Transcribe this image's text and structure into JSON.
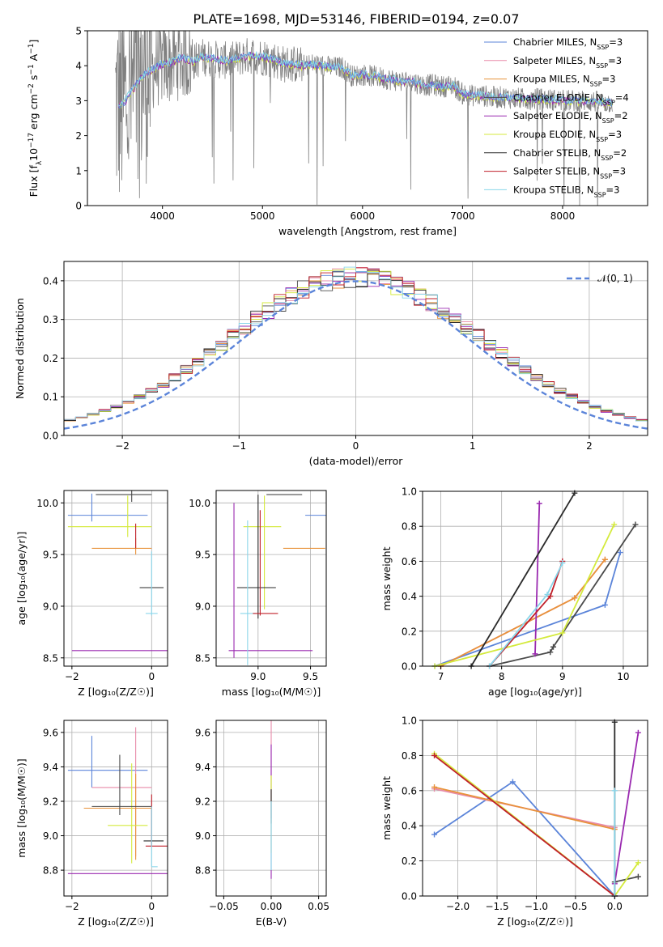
{
  "title": "PLATE=1698, MJD=53146, FIBERID=0194, z=0.07",
  "colors": {
    "Chabrier MILES": "#5b84d9",
    "Salpeter MILES": "#e88aa8",
    "Kroupa MILES": "#e8923a",
    "Chabrier ELODIE": "#4a4a4a",
    "Salpeter ELODIE": "#9a2ab0",
    "Kroupa ELODIE": "#d4ea3c",
    "Chabrier STELIB": "#2a2a2a",
    "Salpeter STELIB": "#c0202a",
    "Kroupa STELIB": "#8ad6ea",
    "data": "#808080",
    "normal": "#5b84d9"
  },
  "chart_data": [
    {
      "id": "spectrum",
      "type": "line",
      "xlabel": "wavelength [Angstrom, rest frame]",
      "ylabel_html": "Flux [f<tspan baseline-shift='sub' font-size='9'>λ</tspan>10<tspan baseline-shift='super' font-size='9'>−17</tspan> erg cm<tspan baseline-shift='super' font-size='9'>−2</tspan> s<tspan baseline-shift='super' font-size='9'>−1</tspan> A<tspan baseline-shift='super' font-size='9'>−1</tspan>]",
      "xlim": [
        3250,
        8850
      ],
      "ylim": [
        0,
        5
      ],
      "xticks": [
        4000,
        5000,
        6000,
        7000,
        8000
      ],
      "yticks": [
        0,
        1,
        2,
        3,
        4,
        5
      ],
      "legend": [
        {
          "label": "Chabrier MILES, N",
          "sub": "SSP",
          "tail": "=3",
          "color": "Chabrier MILES"
        },
        {
          "label": "Salpeter MILES, N",
          "sub": "SSP",
          "tail": "=3",
          "color": "Salpeter MILES"
        },
        {
          "label": "Kroupa MILES, N",
          "sub": "SSP",
          "tail": "=3",
          "color": "Kroupa MILES"
        },
        {
          "label": "Chabrier ELODIE, N",
          "sub": "SSP",
          "tail": "=4",
          "color": "Chabrier ELODIE"
        },
        {
          "label": "Salpeter ELODIE, N",
          "sub": "SSP",
          "tail": "=2",
          "color": "Salpeter ELODIE"
        },
        {
          "label": "Kroupa ELODIE, N",
          "sub": "SSP",
          "tail": "=3",
          "color": "Kroupa ELODIE"
        },
        {
          "label": "Chabrier STELIB, N",
          "sub": "SSP",
          "tail": "=2",
          "color": "Chabrier STELIB"
        },
        {
          "label": "Salpeter STELIB, N",
          "sub": "SSP",
          "tail": "=3",
          "color": "Salpeter STELIB"
        },
        {
          "label": "Kroupa STELIB, N",
          "sub": "SSP",
          "tail": "=3",
          "color": "Kroupa STELIB"
        }
      ],
      "continuum": {
        "x": [
          3550,
          3620,
          3700,
          3800,
          3900,
          4000,
          4100,
          4200,
          4300,
          4400,
          4500,
          4600,
          4700,
          4800,
          4900,
          5000,
          5100,
          5200,
          5300,
          5400,
          5500,
          5600,
          5700,
          5800,
          5900,
          6000,
          6100,
          6200,
          6300,
          6400,
          6500,
          6600,
          6700,
          6800,
          6900,
          7000,
          7100,
          7200,
          7300,
          7400,
          7600,
          7800,
          8000,
          8200,
          8400,
          8500
        ],
        "y": [
          2.85,
          2.95,
          3.3,
          3.7,
          3.9,
          4.05,
          4.1,
          4.25,
          4.1,
          4.25,
          4.2,
          4.15,
          4.15,
          4.25,
          4.3,
          4.25,
          4.2,
          4.05,
          4.05,
          4.0,
          4.05,
          4.0,
          3.95,
          3.95,
          3.7,
          3.75,
          3.7,
          3.65,
          3.6,
          3.55,
          3.55,
          3.45,
          3.45,
          3.4,
          3.45,
          3.2,
          3.15,
          3.15,
          3.1,
          3.1,
          3.05,
          3.05,
          3.0,
          3.0,
          2.95,
          2.95
        ]
      }
    },
    {
      "id": "histogram",
      "type": "histogram",
      "xlabel": "(data-model)/error",
      "ylabel": "Normed distribution",
      "xlim": [
        -2.5,
        2.5
      ],
      "ylim": [
        0,
        0.45
      ],
      "xticks": [
        -2,
        -1,
        0,
        1,
        2
      ],
      "yticks": [
        0.0,
        0.1,
        0.2,
        0.3,
        0.4
      ],
      "legend": "𝒩(0, 1)"
    },
    {
      "id": "age_vs_Z",
      "type": "errorbar",
      "xlabel": "Z [log₁₀(Z/Z☉)]",
      "ylabel": "age  [log₁₀(age/yr)]",
      "xlim": [
        -2.2,
        0.4
      ],
      "ylim": [
        8.42,
        10.12
      ],
      "xticks": [
        -2,
        0
      ],
      "yticks": [
        8.5,
        9.0,
        9.5,
        10.0
      ]
    },
    {
      "id": "age_vs_mass",
      "type": "errorbar",
      "xlabel": "mass [log₁₀(M/M☉)]",
      "ylabel": "",
      "xlim": [
        8.6,
        9.65
      ],
      "ylim": [
        8.42,
        10.12
      ],
      "xticks": [
        9.0,
        9.5
      ],
      "yticks": [
        8.5,
        9.0,
        9.5,
        10.0
      ]
    },
    {
      "id": "weight_vs_age",
      "type": "line",
      "xlabel": "age  [log₁₀(age/yr)]",
      "ylabel": "mass weight",
      "xlim": [
        6.7,
        10.4
      ],
      "ylim": [
        0,
        1
      ],
      "xticks": [
        7,
        8,
        9,
        10
      ],
      "yticks": [
        0.0,
        0.2,
        0.4,
        0.6,
        0.8,
        1.0
      ],
      "series": [
        {
          "name": "Chabrier MILES",
          "x": [
            6.9,
            9.7,
            9.95
          ],
          "y": [
            0.0,
            0.35,
            0.65
          ]
        },
        {
          "name": "Salpeter MILES",
          "x": [
            7.0,
            9.2,
            9.7
          ],
          "y": [
            0.0,
            0.39,
            0.61
          ]
        },
        {
          "name": "Kroupa MILES",
          "x": [
            7.0,
            9.2,
            9.7
          ],
          "y": [
            0.0,
            0.39,
            0.61
          ]
        },
        {
          "name": "Chabrier ELODIE",
          "x": [
            7.8,
            8.8,
            8.85,
            10.2
          ],
          "y": [
            0.0,
            0.08,
            0.11,
            0.81
          ]
        },
        {
          "name": "Salpeter ELODIE",
          "x": [
            8.55,
            8.62
          ],
          "y": [
            0.07,
            0.93
          ]
        },
        {
          "name": "Kroupa ELODIE",
          "x": [
            6.9,
            9.0,
            9.85
          ],
          "y": [
            0.0,
            0.19,
            0.81
          ]
        },
        {
          "name": "Chabrier STELIB",
          "x": [
            7.5,
            9.2
          ],
          "y": [
            0.0,
            0.99
          ]
        },
        {
          "name": "Salpeter STELIB",
          "x": [
            7.8,
            8.8,
            9.0
          ],
          "y": [
            0.0,
            0.4,
            0.6
          ]
        },
        {
          "name": "Kroupa STELIB",
          "x": [
            7.8,
            8.75,
            9.0
          ],
          "y": [
            0.0,
            0.41,
            0.59
          ]
        }
      ]
    },
    {
      "id": "mass_vs_Z",
      "type": "errorbar",
      "xlabel": "Z [log₁₀(Z/Z☉)]",
      "ylabel": "mass [log₁₀(M/M☉)]",
      "xlim": [
        -2.2,
        0.4
      ],
      "ylim": [
        8.65,
        9.67
      ],
      "xticks": [
        -2,
        0
      ],
      "yticks": [
        8.8,
        9.0,
        9.2,
        9.4,
        9.6
      ]
    },
    {
      "id": "mass_vs_ebv",
      "type": "errorbar",
      "xlabel": "E(B-V)",
      "ylabel": "",
      "xlim": [
        -0.058,
        0.058
      ],
      "ylim": [
        8.65,
        9.67
      ],
      "xticks": [
        -0.05,
        0.0,
        0.05
      ],
      "xticklabels": [
        "−0.05",
        "0.00",
        "0.05"
      ],
      "yticks": [
        8.8,
        9.0,
        9.2,
        9.4,
        9.6
      ]
    },
    {
      "id": "weight_vs_Z",
      "type": "line",
      "xlabel": "Z [log₁₀(Z/Z☉)]",
      "ylabel": "mass weight",
      "xlim": [
        -2.45,
        0.42
      ],
      "ylim": [
        0,
        1
      ],
      "xticks": [
        -2.0,
        -1.5,
        -1.0,
        -0.5,
        0.0
      ],
      "yticks": [
        0.0,
        0.2,
        0.4,
        0.6,
        0.8,
        1.0
      ],
      "series": [
        {
          "name": "Chabrier MILES",
          "x": [
            -2.3,
            -1.3,
            0.0,
            0.0
          ],
          "y": [
            0.35,
            0.65,
            0.0,
            0.0
          ]
        },
        {
          "name": "Salpeter MILES",
          "x": [
            -2.3,
            0.0
          ],
          "y": [
            0.61,
            0.39
          ]
        },
        {
          "name": "Kroupa MILES",
          "x": [
            -2.3,
            0.0
          ],
          "y": [
            0.62,
            0.38
          ]
        },
        {
          "name": "Chabrier ELODIE",
          "x": [
            0.0,
            0.3
          ],
          "y": [
            0.08,
            0.11
          ]
        },
        {
          "name": "Salpeter ELODIE",
          "x": [
            0.0,
            0.3
          ],
          "y": [
            0.07,
            0.93
          ]
        },
        {
          "name": "Kroupa ELODIE",
          "x": [
            -2.3,
            0.0,
            0.3
          ],
          "y": [
            0.81,
            0.0,
            0.19
          ]
        },
        {
          "name": "Chabrier STELIB",
          "x": [
            0.0,
            0.0
          ],
          "y": [
            0.0,
            0.99
          ]
        },
        {
          "name": "Salpeter STELIB",
          "x": [
            -2.3,
            0.0,
            0.0
          ],
          "y": [
            0.8,
            0.0,
            0.0
          ]
        },
        {
          "name": "Kroupa STELIB",
          "x": [
            0.0,
            0.0
          ],
          "y": [
            0.0,
            0.6
          ]
        }
      ]
    }
  ]
}
